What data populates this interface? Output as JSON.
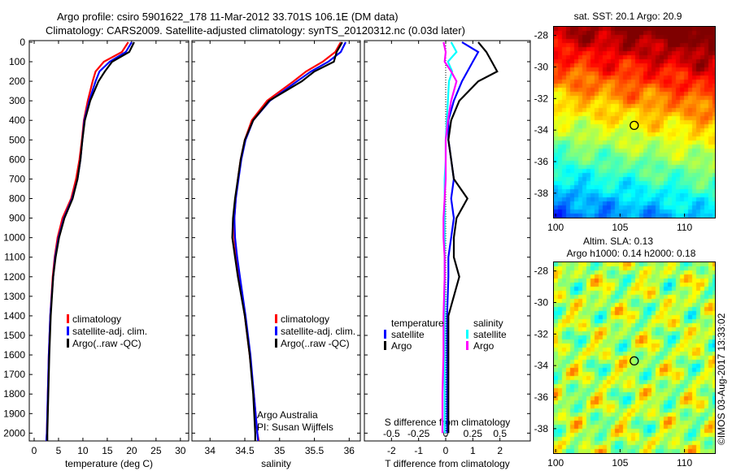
{
  "title_line1": "Argo profile: csiro 5901622_178 11-Mar-2012 33.701S 106.1E (DM data)",
  "title_line2": "Climatology: CARS2009. Satellite-adjusted climatology: synTS_20120312.nc (0.03d later)",
  "credit": "©IMOS 03-Aug-2017 13:33:02",
  "colors": {
    "climatology": "#ff0000",
    "satellite": "#0000ff",
    "argo": "#000000",
    "sal_satellite": "#00ffff",
    "sal_argo": "#ff00ff"
  },
  "chart_data": [
    {
      "type": "line",
      "id": "temperature",
      "xlabel": "temperature (deg C)",
      "xlim": [
        -1,
        31.7
      ],
      "ylim": [
        -8,
        2040
      ],
      "xticks": [
        0,
        5,
        10,
        15,
        20,
        25,
        30
      ],
      "yticks": [
        0,
        100,
        200,
        300,
        400,
        500,
        600,
        700,
        800,
        900,
        1000,
        1100,
        1200,
        1300,
        1400,
        1500,
        1600,
        1700,
        1800,
        1900,
        2000
      ],
      "depth": [
        0,
        50,
        100,
        150,
        200,
        300,
        400,
        500,
        600,
        700,
        800,
        900,
        1000,
        1100,
        1200,
        1400,
        1600,
        1800,
        2000,
        2040
      ],
      "series": [
        {
          "name": "climatology",
          "color": "#ff0000",
          "values": [
            19.3,
            18,
            14.3,
            12.6,
            12,
            11,
            10.2,
            9.8,
            9.3,
            8.6,
            7.6,
            5.8,
            4.8,
            4.2,
            3.8,
            3.3,
            3.0,
            2.8,
            2.6,
            2.5
          ]
        },
        {
          "name": "satellite-adj. clim.",
          "color": "#0000ff",
          "values": [
            20,
            18.8,
            15.5,
            13.4,
            12.6,
            11.3,
            10.3,
            9.9,
            9.5,
            8.9,
            7.8,
            6.1,
            5.0,
            4.3,
            3.9,
            3.3,
            3.0,
            2.8,
            2.6,
            2.5
          ]
        },
        {
          "name": "Argo(..raw -QC)",
          "color": "#000000",
          "values": [
            20.5,
            19.5,
            16,
            14.5,
            13.2,
            11.5,
            10.4,
            9.9,
            9.5,
            8.9,
            7.9,
            6.2,
            5.1,
            4.4,
            3.9,
            3.4,
            3.1,
            2.9,
            2.7,
            2.7
          ]
        }
      ],
      "legend": "lower-right"
    },
    {
      "type": "line",
      "id": "salinity",
      "xlabel": "salinity",
      "xlim": [
        33.74,
        36.16
      ],
      "ylim": [
        -8,
        2040
      ],
      "xticks": [
        34,
        34.5,
        35,
        35.5,
        36
      ],
      "depth": [
        0,
        50,
        100,
        150,
        200,
        300,
        400,
        500,
        600,
        700,
        800,
        900,
        1000,
        1100,
        1200,
        1400,
        1600,
        1800,
        2000,
        2040
      ],
      "series": [
        {
          "name": "climatology",
          "color": "#ff0000",
          "values": [
            35.88,
            35.8,
            35.62,
            35.38,
            35.2,
            34.82,
            34.6,
            34.5,
            34.44,
            34.4,
            34.37,
            34.35,
            34.35,
            34.38,
            34.42,
            34.5,
            34.57,
            34.63,
            34.68,
            34.7
          ]
        },
        {
          "name": "satellite-adj. clim.",
          "color": "#0000ff",
          "values": [
            35.95,
            35.88,
            35.7,
            35.45,
            35.25,
            34.86,
            34.62,
            34.51,
            34.45,
            34.41,
            34.37,
            34.35,
            34.36,
            34.39,
            34.43,
            34.51,
            34.58,
            34.63,
            34.68,
            34.69
          ]
        },
        {
          "name": "Argo(..raw -QC)",
          "color": "#000000",
          "values": [
            35.9,
            35.82,
            35.78,
            35.5,
            35.32,
            34.85,
            34.62,
            34.5,
            34.44,
            34.4,
            34.36,
            34.33,
            34.32,
            34.36,
            34.4,
            34.5,
            34.57,
            34.62,
            34.65,
            34.65
          ]
        }
      ],
      "annotation": [
        "Argo Australia",
        "PI: Susan Wijffels"
      ],
      "legend": "lower-right"
    },
    {
      "type": "line",
      "id": "difference",
      "xlabel": "T difference from climatology",
      "x2label": "S difference from climatology",
      "xlim": [
        -3.0,
        3.12
      ],
      "x2lim": [
        -0.75,
        0.78
      ],
      "xticks": [
        -2,
        -1,
        0,
        1,
        2
      ],
      "x2ticks": [
        -0.5,
        -0.25,
        0,
        0.25,
        0.5
      ],
      "x2ticklabels": [
        "-0.5",
        "-0.25",
        "0",
        "0.25",
        "0.5"
      ],
      "ylim": [
        -8,
        2040
      ],
      "depth": [
        0,
        50,
        100,
        150,
        200,
        300,
        400,
        500,
        600,
        700,
        800,
        900,
        1000,
        1100,
        1200,
        1400,
        1600,
        1800,
        2000
      ],
      "series": [
        {
          "name": "temperature satellite",
          "axis": "T",
          "color": "#0000ff",
          "values": [
            0.6,
            1.2,
            1.0,
            0.8,
            0.6,
            0.3,
            0.1,
            0.1,
            0.2,
            0.3,
            0.2,
            0.3,
            0.2,
            0.1,
            0.1,
            0.05,
            0.05,
            0.05,
            0.05
          ]
        },
        {
          "name": "temperature Argo",
          "axis": "T",
          "color": "#000000",
          "values": [
            1.2,
            1.5,
            1.7,
            1.9,
            1.2,
            0.5,
            0.2,
            0.1,
            0.2,
            0.3,
            0.8,
            0.4,
            0.3,
            0.3,
            0.5,
            0.1,
            0.1,
            0.1,
            0.1
          ]
        },
        {
          "name": "salinity satellite",
          "axis": "S",
          "color": "#00ffff",
          "values": [
            0.05,
            0.1,
            0.02,
            0.06,
            0.03,
            0.02,
            0.01,
            0.0,
            0.0,
            -0.01,
            -0.01,
            -0.01,
            -0.01,
            -0.01,
            -0.01,
            -0.01,
            -0.01,
            -0.01,
            -0.01
          ]
        },
        {
          "name": "salinity Argo",
          "axis": "S",
          "color": "#ff00ff",
          "values": [
            -0.02,
            0.0,
            -0.01,
            0.05,
            0.1,
            0.05,
            0.02,
            0.0,
            0.0,
            0.0,
            -0.01,
            -0.02,
            -0.02,
            -0.01,
            -0.01,
            -0.02,
            -0.02,
            -0.03,
            -0.03
          ]
        }
      ],
      "legend_headers": [
        "temperature",
        "salinity"
      ],
      "legend_items": [
        {
          "label": "satellite",
          "color": "#0000ff"
        },
        {
          "label": "Argo",
          "color": "#000000"
        },
        {
          "label": "satellite",
          "color": "#00ffff"
        },
        {
          "label": "Argo",
          "color": "#ff00ff"
        }
      ]
    },
    {
      "type": "heatmap",
      "id": "sst-map",
      "title": "sat. SST: 20.1  Argo: 20.9",
      "xticks": [
        100,
        105,
        110
      ],
      "yticks": [
        -28,
        -30,
        -32,
        -34,
        -36,
        -38
      ],
      "xlim": [
        99.8,
        112.3
      ],
      "ylim": [
        -39.5,
        -27.4
      ],
      "argo_position": {
        "lon": 106.1,
        "lat": -33.701
      }
    },
    {
      "type": "heatmap",
      "id": "sla-map",
      "title": "Altim. SLA: 0.13",
      "subtitle": "Argo h1000: 0.14  h2000: 0.18",
      "xticks": [
        100,
        105,
        110
      ],
      "yticks": [
        -28,
        -30,
        -32,
        -34,
        -36,
        -38
      ],
      "xlim": [
        99.8,
        112.3
      ],
      "ylim": [
        -39.5,
        -27.4
      ],
      "argo_position": {
        "lon": 106.1,
        "lat": -33.701
      }
    }
  ]
}
